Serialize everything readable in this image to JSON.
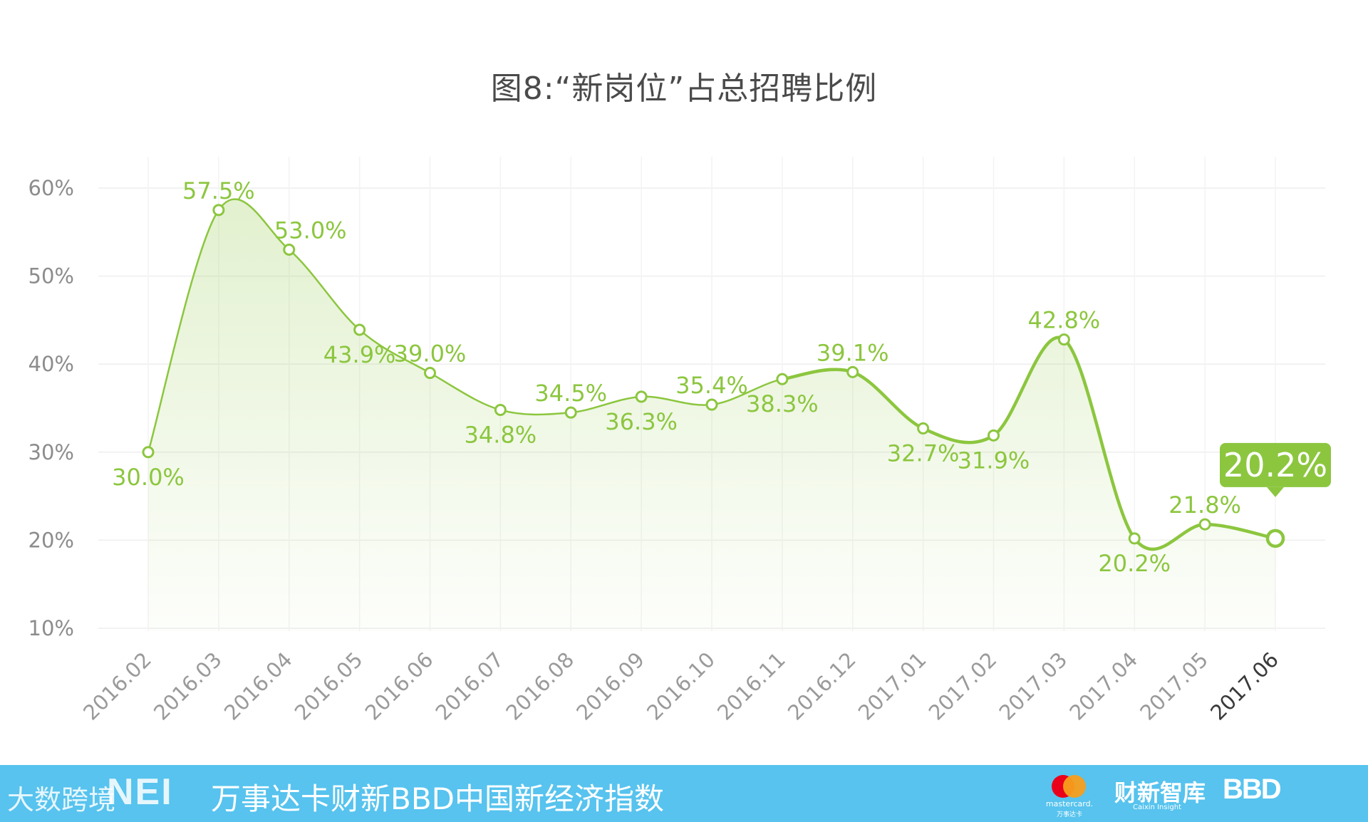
{
  "chart_data": {
    "type": "line",
    "title": "图8:“新岗位”占总招聘比例",
    "categories": [
      "2016.02",
      "2016.03",
      "2016.04",
      "2016.05",
      "2016.06",
      "2016.07",
      "2016.08",
      "2016.09",
      "2016.10",
      "2016.11",
      "2016.12",
      "2017.01",
      "2017.02",
      "2017.03",
      "2017.04",
      "2017.05",
      "2017.06"
    ],
    "series": [
      {
        "name": "新岗位占总招聘比例",
        "values": [
          30.0,
          57.5,
          53.0,
          43.9,
          39.0,
          34.8,
          34.5,
          36.3,
          35.4,
          38.3,
          39.1,
          32.7,
          31.9,
          42.8,
          20.2,
          21.8,
          20.2
        ],
        "labels": [
          "30.0%",
          "57.5%",
          "53.0%",
          "43.9%",
          "39.0%",
          "34.8%",
          "34.5%",
          "36.3%",
          "35.4%",
          "38.3%",
          "39.1%",
          "32.7%",
          "31.9%",
          "42.8%",
          "20.2%",
          "21.8%",
          "20.2%"
        ]
      }
    ],
    "ylim": [
      10,
      60
    ],
    "yticks": [
      10,
      20,
      30,
      40,
      50,
      60
    ],
    "ytick_labels": [
      "10%",
      "20%",
      "30%",
      "40%",
      "50%",
      "60%"
    ],
    "xlabel": "",
    "ylabel": "",
    "grid": true,
    "highlight": {
      "index": 16,
      "label": "20.2%"
    }
  },
  "colors": {
    "line": "#8cc63f",
    "label": "#8cc63f",
    "footer": "#57c3ee"
  },
  "footer": {
    "logo": "NEI",
    "text": "万事达卡财新BBD中国新经济指数",
    "watermark": "大数跨境",
    "partners": {
      "mastercard": "mastercard.",
      "mastercard_sub": "万事达卡",
      "caixin": "财新智库",
      "caixin_sub": "Caixin Insight",
      "bbd": "BBD"
    }
  }
}
